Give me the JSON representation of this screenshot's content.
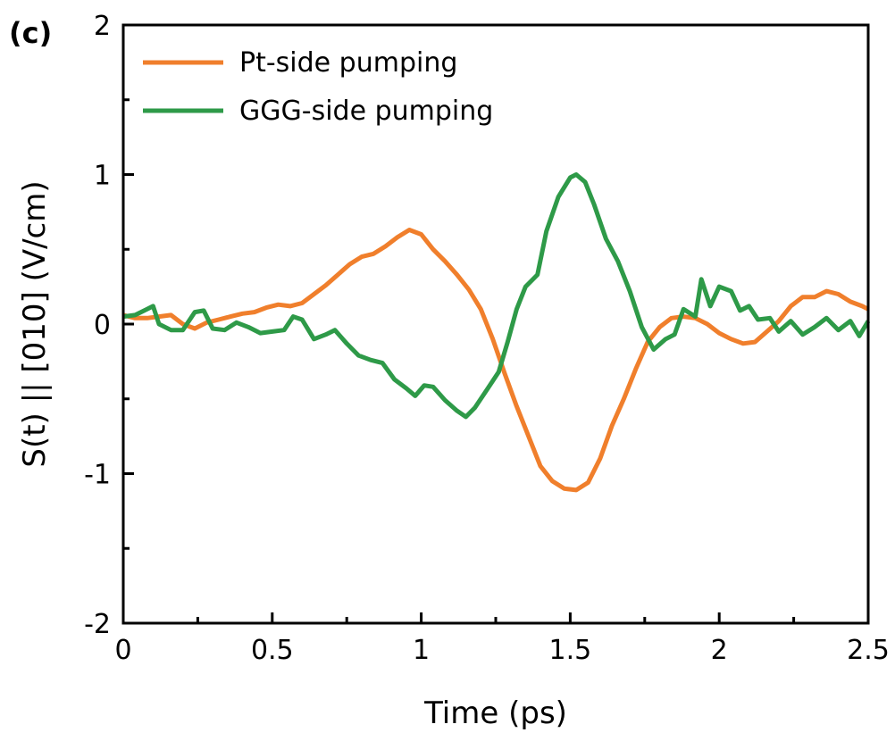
{
  "chart_data": {
    "type": "line",
    "panel_label": "(c)",
    "xlabel": "Time (ps)",
    "ylabel": "S(t) || [010] (V/cm)",
    "xlim": [
      0,
      2.5
    ],
    "ylim": [
      -2,
      2
    ],
    "x_ticks": [
      "0",
      "0.5",
      "1",
      "1.5",
      "2",
      "2.5"
    ],
    "y_ticks": [
      "2",
      "1",
      "0",
      "-1",
      "-2"
    ],
    "legend_position": "top-left",
    "grid": false,
    "series": [
      {
        "name": "Pt-side pumping",
        "color": "#f07f2c",
        "points": [
          [
            0.0,
            0.06
          ],
          [
            0.04,
            0.04
          ],
          [
            0.08,
            0.04
          ],
          [
            0.12,
            0.05
          ],
          [
            0.16,
            0.06
          ],
          [
            0.2,
            0.0
          ],
          [
            0.24,
            -0.03
          ],
          [
            0.28,
            0.01
          ],
          [
            0.32,
            0.03
          ],
          [
            0.36,
            0.05
          ],
          [
            0.4,
            0.07
          ],
          [
            0.44,
            0.08
          ],
          [
            0.48,
            0.11
          ],
          [
            0.52,
            0.13
          ],
          [
            0.56,
            0.12
          ],
          [
            0.6,
            0.14
          ],
          [
            0.64,
            0.2
          ],
          [
            0.68,
            0.26
          ],
          [
            0.72,
            0.33
          ],
          [
            0.76,
            0.4
          ],
          [
            0.8,
            0.45
          ],
          [
            0.84,
            0.47
          ],
          [
            0.88,
            0.52
          ],
          [
            0.92,
            0.58
          ],
          [
            0.96,
            0.63
          ],
          [
            1.0,
            0.6
          ],
          [
            1.04,
            0.5
          ],
          [
            1.08,
            0.42
          ],
          [
            1.12,
            0.33
          ],
          [
            1.16,
            0.23
          ],
          [
            1.2,
            0.1
          ],
          [
            1.24,
            -0.1
          ],
          [
            1.28,
            -0.33
          ],
          [
            1.32,
            -0.55
          ],
          [
            1.36,
            -0.75
          ],
          [
            1.4,
            -0.95
          ],
          [
            1.44,
            -1.05
          ],
          [
            1.48,
            -1.1
          ],
          [
            1.52,
            -1.11
          ],
          [
            1.56,
            -1.06
          ],
          [
            1.6,
            -0.9
          ],
          [
            1.64,
            -0.68
          ],
          [
            1.68,
            -0.5
          ],
          [
            1.72,
            -0.3
          ],
          [
            1.76,
            -0.12
          ],
          [
            1.8,
            -0.02
          ],
          [
            1.84,
            0.04
          ],
          [
            1.88,
            0.05
          ],
          [
            1.92,
            0.04
          ],
          [
            1.96,
            0.0
          ],
          [
            2.0,
            -0.06
          ],
          [
            2.04,
            -0.1
          ],
          [
            2.08,
            -0.13
          ],
          [
            2.12,
            -0.12
          ],
          [
            2.16,
            -0.05
          ],
          [
            2.2,
            0.02
          ],
          [
            2.24,
            0.12
          ],
          [
            2.28,
            0.18
          ],
          [
            2.32,
            0.18
          ],
          [
            2.36,
            0.22
          ],
          [
            2.4,
            0.2
          ],
          [
            2.44,
            0.15
          ],
          [
            2.48,
            0.12
          ],
          [
            2.5,
            0.1
          ]
        ]
      },
      {
        "name": "GGG-side pumping",
        "color": "#2e9a48",
        "points": [
          [
            0.0,
            0.05
          ],
          [
            0.04,
            0.06
          ],
          [
            0.08,
            0.1
          ],
          [
            0.1,
            0.12
          ],
          [
            0.12,
            0.0
          ],
          [
            0.16,
            -0.04
          ],
          [
            0.2,
            -0.04
          ],
          [
            0.24,
            0.08
          ],
          [
            0.27,
            0.09
          ],
          [
            0.3,
            -0.03
          ],
          [
            0.34,
            -0.04
          ],
          [
            0.38,
            0.01
          ],
          [
            0.42,
            -0.02
          ],
          [
            0.46,
            -0.06
          ],
          [
            0.5,
            -0.05
          ],
          [
            0.54,
            -0.04
          ],
          [
            0.57,
            0.05
          ],
          [
            0.6,
            0.03
          ],
          [
            0.64,
            -0.1
          ],
          [
            0.68,
            -0.07
          ],
          [
            0.71,
            -0.04
          ],
          [
            0.75,
            -0.13
          ],
          [
            0.79,
            -0.21
          ],
          [
            0.83,
            -0.24
          ],
          [
            0.87,
            -0.26
          ],
          [
            0.91,
            -0.37
          ],
          [
            0.95,
            -0.43
          ],
          [
            0.98,
            -0.48
          ],
          [
            1.01,
            -0.41
          ],
          [
            1.04,
            -0.42
          ],
          [
            1.08,
            -0.51
          ],
          [
            1.12,
            -0.58
          ],
          [
            1.15,
            -0.62
          ],
          [
            1.18,
            -0.56
          ],
          [
            1.22,
            -0.44
          ],
          [
            1.26,
            -0.32
          ],
          [
            1.29,
            -0.12
          ],
          [
            1.32,
            0.1
          ],
          [
            1.35,
            0.25
          ],
          [
            1.39,
            0.33
          ],
          [
            1.42,
            0.62
          ],
          [
            1.46,
            0.85
          ],
          [
            1.5,
            0.98
          ],
          [
            1.52,
            1.0
          ],
          [
            1.55,
            0.95
          ],
          [
            1.58,
            0.8
          ],
          [
            1.62,
            0.57
          ],
          [
            1.66,
            0.42
          ],
          [
            1.7,
            0.22
          ],
          [
            1.74,
            -0.02
          ],
          [
            1.78,
            -0.17
          ],
          [
            1.82,
            -0.1
          ],
          [
            1.85,
            -0.07
          ],
          [
            1.88,
            0.1
          ],
          [
            1.92,
            0.05
          ],
          [
            1.94,
            0.3
          ],
          [
            1.97,
            0.12
          ],
          [
            2.0,
            0.25
          ],
          [
            2.04,
            0.22
          ],
          [
            2.07,
            0.09
          ],
          [
            2.1,
            0.12
          ],
          [
            2.13,
            0.03
          ],
          [
            2.17,
            0.04
          ],
          [
            2.2,
            -0.05
          ],
          [
            2.24,
            0.02
          ],
          [
            2.28,
            -0.07
          ],
          [
            2.32,
            -0.02
          ],
          [
            2.36,
            0.04
          ],
          [
            2.4,
            -0.04
          ],
          [
            2.44,
            0.02
          ],
          [
            2.47,
            -0.08
          ],
          [
            2.5,
            0.02
          ]
        ]
      }
    ]
  }
}
